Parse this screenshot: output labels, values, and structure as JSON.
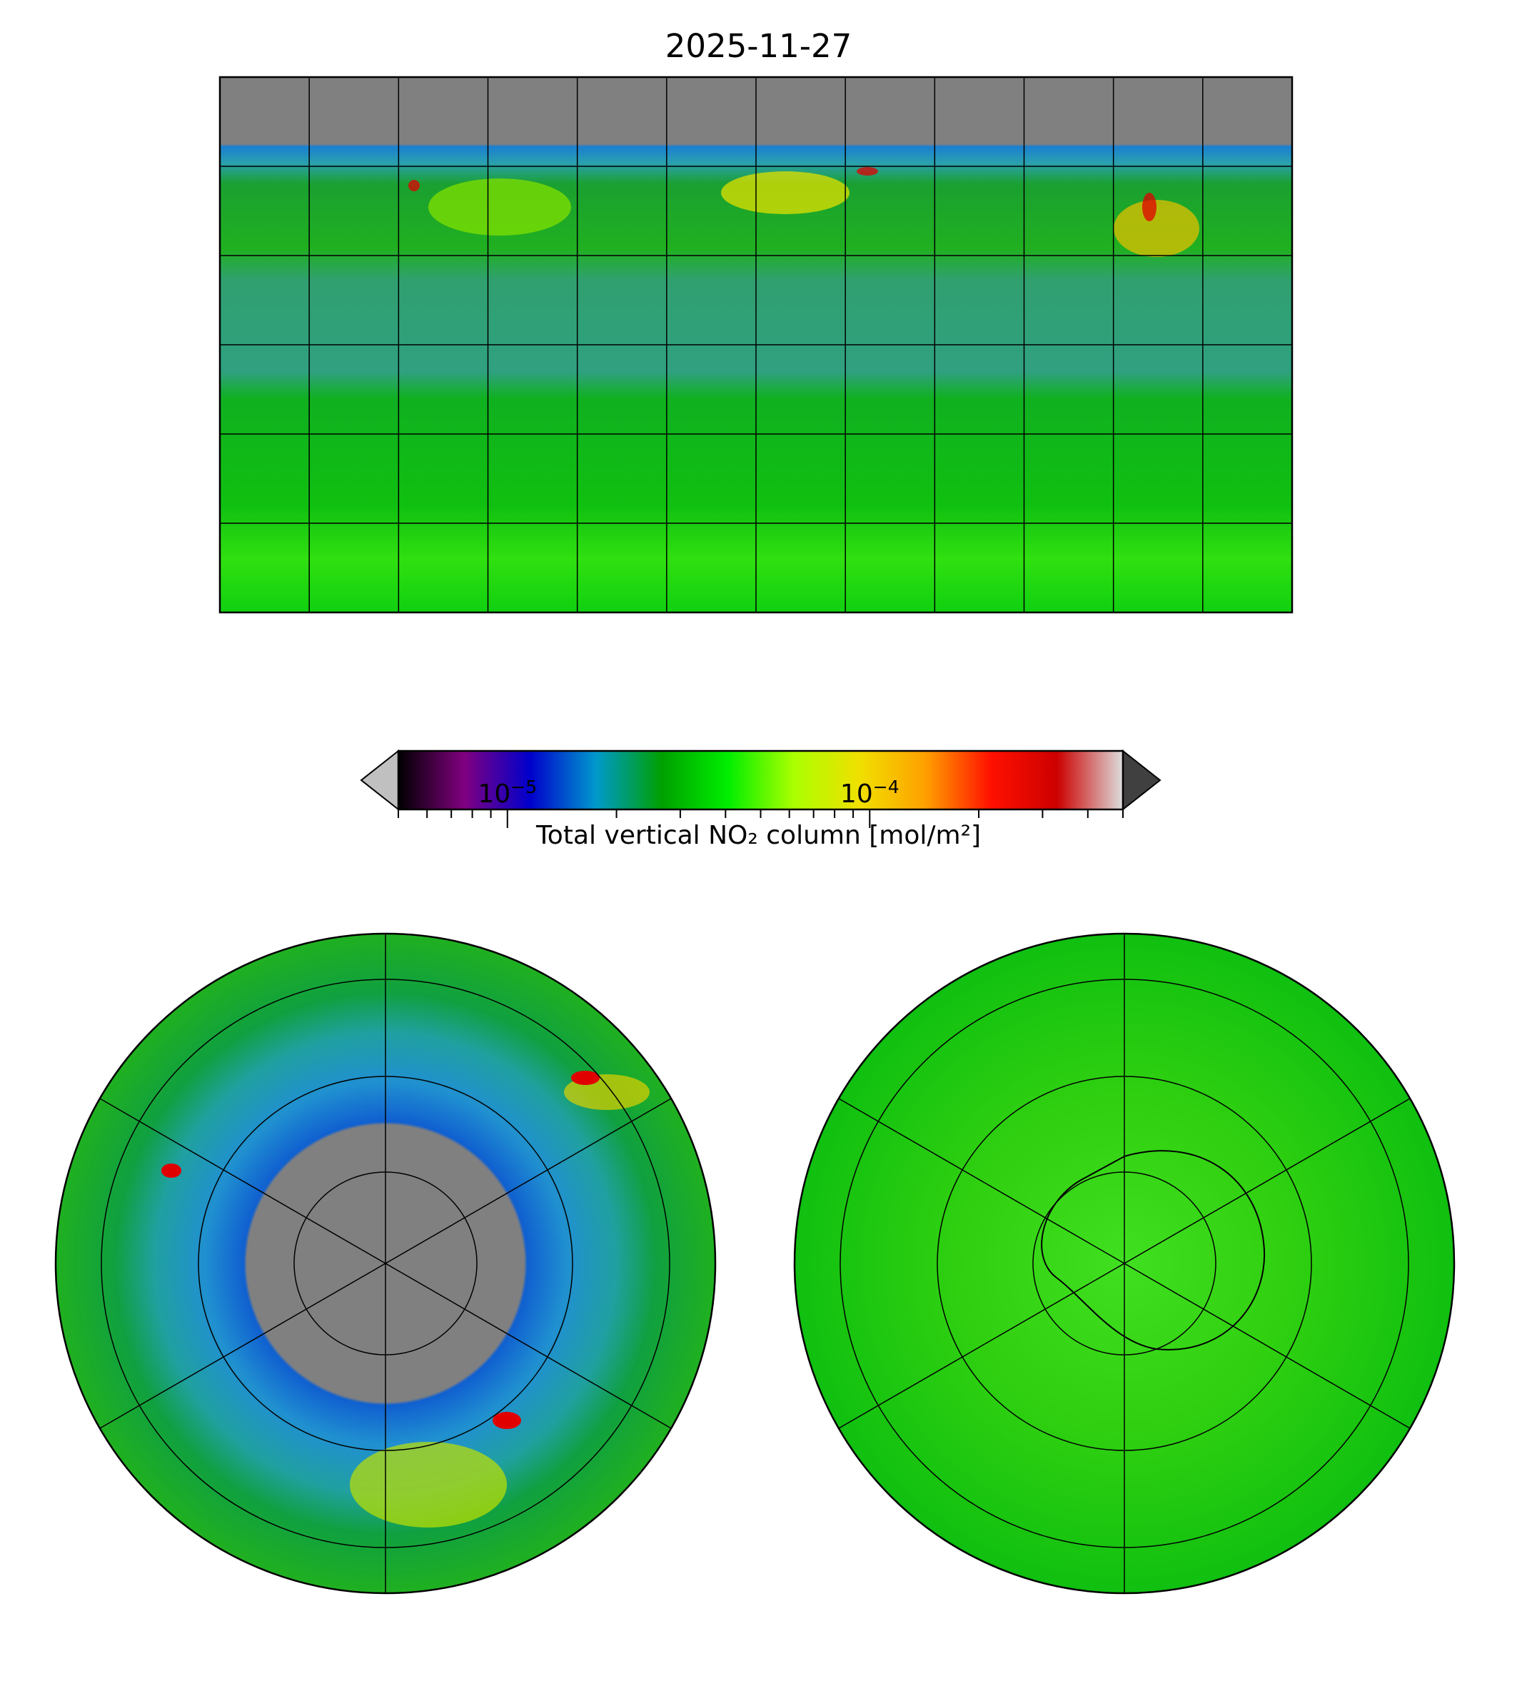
{
  "title": "2025-11-27",
  "chart_data": {
    "type": "heatmap",
    "title": "2025-11-27",
    "panels": [
      "global map (plate carree)",
      "north polar stereographic",
      "south polar stereographic"
    ],
    "gridlines": {
      "lon_step_deg": 30,
      "lat_step_deg": 30,
      "polar_meridian_step_deg": 60
    },
    "colorbar": {
      "label": "Total vertical NO₂ column [mol/m²]",
      "scale": "log",
      "range": [
        5e-06,
        0.0005
      ],
      "extend": "both",
      "major_ticks": [
        {
          "value": 1e-05,
          "base": "10",
          "exp": "−5"
        },
        {
          "value": 0.0001,
          "base": "10",
          "exp": "−4"
        }
      ],
      "colors": [
        "#000000",
        "#800080",
        "#0000cc",
        "#0099cc",
        "#00a000",
        "#00ee00",
        "#aaff00",
        "#f0e000",
        "#ffa000",
        "#ff1000",
        "#cc0000",
        "#dddddd"
      ],
      "under_color": "#c0c0c0",
      "over_color": "#404040"
    },
    "missing_color": "#808080"
  }
}
